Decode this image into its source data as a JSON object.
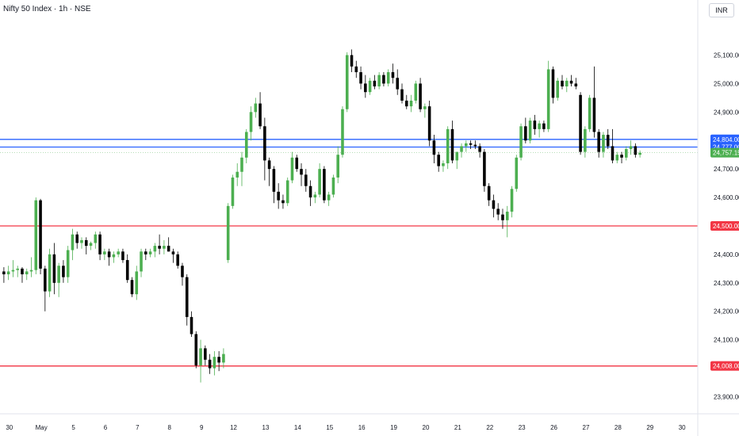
{
  "header": {
    "title": "Nifty 50 Index · 1h · NSE",
    "currency": "INR"
  },
  "chart_data": {
    "type": "candlestick",
    "ylim": [
      23840,
      25210
    ],
    "y_ticks": [
      {
        "value": 25100,
        "label": "25,100.00"
      },
      {
        "value": 25000,
        "label": "25,000.00"
      },
      {
        "value": 24900,
        "label": "24,900.00"
      },
      {
        "value": 24700,
        "label": "24,700.00"
      },
      {
        "value": 24600,
        "label": "24,600.00"
      },
      {
        "value": 24400,
        "label": "24,400.00"
      },
      {
        "value": 24300,
        "label": "24,300.00"
      },
      {
        "value": 24200,
        "label": "24,200.00"
      },
      {
        "value": 24100,
        "label": "24,100.00"
      },
      {
        "value": 23900,
        "label": "23,900.00"
      }
    ],
    "x_ticks": [
      "30",
      "May",
      "5",
      "6",
      "7",
      "8",
      "9",
      "12",
      "13",
      "14",
      "15",
      "16",
      "19",
      "20",
      "21",
      "22",
      "23",
      "26",
      "27",
      "28",
      "29",
      "30"
    ],
    "sessions_per_day": 7,
    "level_lines": [
      {
        "value": 24804,
        "label": "24,804.00",
        "color": "#2962ff"
      },
      {
        "value": 24777,
        "label": "24,777.00",
        "color": "#2962ff"
      },
      {
        "value": 24500,
        "label": "24,500.00",
        "color": "#f23645"
      },
      {
        "value": 24008,
        "label": "24,008.00",
        "color": "#f23645"
      }
    ],
    "last_price": {
      "value": 24757.15,
      "label": "24,757.15",
      "color": "#4caf50"
    },
    "colors": {
      "up": "#4caf50",
      "down": "#000000",
      "wick_up": "#4caf50",
      "wick_down": "#000000"
    },
    "candles": [
      [
        24340,
        24355,
        24300,
        24330
      ],
      [
        24330,
        24360,
        24310,
        24340
      ],
      [
        24340,
        24380,
        24320,
        24345
      ],
      [
        24345,
        24360,
        24320,
        24350
      ],
      [
        24350,
        24355,
        24300,
        24330
      ],
      [
        24330,
        24350,
        24310,
        24340
      ],
      [
        24340,
        24390,
        24320,
        24345
      ],
      [
        24345,
        24600,
        24330,
        24590
      ],
      [
        24590,
        24595,
        24330,
        24350
      ],
      [
        24350,
        24360,
        24200,
        24270
      ],
      [
        24270,
        24420,
        24250,
        24400
      ],
      [
        24400,
        24440,
        24260,
        24300
      ],
      [
        24300,
        24370,
        24250,
        24360
      ],
      [
        24360,
        24380,
        24300,
        24320
      ],
      [
        24320,
        24430,
        24300,
        24415
      ],
      [
        24415,
        24490,
        24380,
        24470
      ],
      [
        24470,
        24480,
        24420,
        24440
      ],
      [
        24440,
        24460,
        24420,
        24450
      ],
      [
        24450,
        24460,
        24400,
        24430
      ],
      [
        24430,
        24445,
        24415,
        24440
      ],
      [
        24440,
        24480,
        24420,
        24470
      ],
      [
        24470,
        24480,
        24380,
        24400
      ],
      [
        24400,
        24420,
        24380,
        24410
      ],
      [
        24410,
        24420,
        24360,
        24390
      ],
      [
        24390,
        24410,
        24370,
        24400
      ],
      [
        24400,
        24420,
        24390,
        24410
      ],
      [
        24410,
        24420,
        24370,
        24380
      ],
      [
        24380,
        24400,
        24300,
        24310
      ],
      [
        24310,
        24320,
        24250,
        24260
      ],
      [
        24260,
        24360,
        24240,
        24340
      ],
      [
        24340,
        24420,
        24320,
        24410
      ],
      [
        24410,
        24420,
        24380,
        24400
      ],
      [
        24400,
        24420,
        24390,
        24410
      ],
      [
        24410,
        24440,
        24390,
        24430
      ],
      [
        24430,
        24470,
        24400,
        24420
      ],
      [
        24420,
        24450,
        24400,
        24430
      ],
      [
        24430,
        24460,
        24410,
        24410
      ],
      [
        24410,
        24420,
        24370,
        24400
      ],
      [
        24400,
        24410,
        24350,
        24360
      ],
      [
        24360,
        24370,
        24290,
        24320
      ],
      [
        24320,
        24330,
        24150,
        24180
      ],
      [
        24180,
        24200,
        24110,
        24120
      ],
      [
        24120,
        24130,
        24000,
        24010
      ],
      [
        24010,
        24100,
        23950,
        24070
      ],
      [
        24070,
        24080,
        24010,
        24030
      ],
      [
        24030,
        24050,
        23980,
        24000
      ],
      [
        24000,
        24060,
        23975,
        24040
      ],
      [
        24040,
        24060,
        23990,
        24020
      ],
      [
        24020,
        24070,
        24000,
        24050
      ],
      [
        24380,
        24580,
        24370,
        24570
      ],
      [
        24570,
        24680,
        24560,
        24670
      ],
      [
        24670,
        24720,
        24640,
        24690
      ],
      [
        24690,
        24760,
        24640,
        24740
      ],
      [
        24740,
        24840,
        24720,
        24830
      ],
      [
        24830,
        24920,
        24800,
        24900
      ],
      [
        24900,
        24950,
        24880,
        24930
      ],
      [
        24930,
        24970,
        24840,
        24850
      ],
      [
        24850,
        24880,
        24660,
        24730
      ],
      [
        24730,
        24740,
        24640,
        24700
      ],
      [
        24700,
        24710,
        24580,
        24620
      ],
      [
        24620,
        24650,
        24560,
        24590
      ],
      [
        24590,
        24610,
        24560,
        24580
      ],
      [
        24580,
        24670,
        24570,
        24660
      ],
      [
        24660,
        24760,
        24650,
        24740
      ],
      [
        24740,
        24750,
        24690,
        24700
      ],
      [
        24700,
        24720,
        24640,
        24680
      ],
      [
        24680,
        24700,
        24620,
        24640
      ],
      [
        24640,
        24660,
        24570,
        24600
      ],
      [
        24600,
        24620,
        24580,
        24610
      ],
      [
        24610,
        24720,
        24600,
        24700
      ],
      [
        24700,
        24710,
        24580,
        24590
      ],
      [
        24590,
        24620,
        24570,
        24610
      ],
      [
        24610,
        24680,
        24600,
        24670
      ],
      [
        24670,
        24780,
        24650,
        24750
      ],
      [
        24750,
        24920,
        24740,
        24910
      ],
      [
        24910,
        25110,
        24900,
        25100
      ],
      [
        25100,
        25120,
        25040,
        25060
      ],
      [
        25060,
        25080,
        25020,
        25040
      ],
      [
        25040,
        25060,
        24980,
        25000
      ],
      [
        25000,
        25030,
        24950,
        24970
      ],
      [
        24970,
        25020,
        24960,
        25010
      ],
      [
        25010,
        25030,
        24980,
        24990
      ],
      [
        24990,
        25040,
        24980,
        25030
      ],
      [
        25030,
        25040,
        24990,
        25000
      ],
      [
        25000,
        25050,
        24990,
        25040
      ],
      [
        25040,
        25070,
        25000,
        25020
      ],
      [
        25020,
        25050,
        24960,
        24980
      ],
      [
        24980,
        25000,
        24930,
        24940
      ],
      [
        24940,
        24960,
        24910,
        24920
      ],
      [
        24920,
        24960,
        24900,
        24940
      ],
      [
        24940,
        25010,
        24930,
        25000
      ],
      [
        25000,
        25020,
        24900,
        24910
      ],
      [
        24910,
        24930,
        24880,
        24920
      ],
      [
        24920,
        24940,
        24780,
        24800
      ],
      [
        24800,
        24820,
        24720,
        24750
      ],
      [
        24750,
        24760,
        24690,
        24710
      ],
      [
        24710,
        24730,
        24690,
        24720
      ],
      [
        24720,
        24850,
        24700,
        24840
      ],
      [
        24840,
        24870,
        24720,
        24730
      ],
      [
        24730,
        24760,
        24700,
        24760
      ],
      [
        24760,
        24790,
        24740,
        24780
      ],
      [
        24780,
        24800,
        24760,
        24790
      ],
      [
        24790,
        24800,
        24770,
        24785
      ],
      [
        24785,
        24800,
        24770,
        24780
      ],
      [
        24780,
        24790,
        24740,
        24760
      ],
      [
        24760,
        24770,
        24620,
        24640
      ],
      [
        24640,
        24650,
        24570,
        24590
      ],
      [
        24590,
        24610,
        24530,
        24560
      ],
      [
        24560,
        24580,
        24520,
        24540
      ],
      [
        24540,
        24560,
        24490,
        24520
      ],
      [
        24520,
        24570,
        24460,
        24550
      ],
      [
        24550,
        24640,
        24530,
        24630
      ],
      [
        24630,
        24750,
        24620,
        24740
      ],
      [
        24740,
        24860,
        24730,
        24850
      ],
      [
        24850,
        24880,
        24790,
        24800
      ],
      [
        24800,
        24880,
        24790,
        24870
      ],
      [
        24870,
        24890,
        24820,
        24840
      ],
      [
        24840,
        24870,
        24810,
        24860
      ],
      [
        24860,
        24870,
        24830,
        24840
      ],
      [
        24840,
        25080,
        24830,
        25050
      ],
      [
        25050,
        25060,
        24930,
        24950
      ],
      [
        24950,
        25020,
        24940,
        25010
      ],
      [
        25010,
        25030,
        24980,
        24990
      ],
      [
        24990,
        25020,
        24970,
        25010
      ],
      [
        25010,
        25030,
        24990,
        25000
      ],
      [
        25000,
        25020,
        24980,
        24990
      ],
      [
        24960,
        24970,
        24750,
        24760
      ],
      [
        24760,
        24850,
        24740,
        24840
      ],
      [
        24840,
        24960,
        24830,
        24950
      ],
      [
        24950,
        25060,
        24810,
        24830
      ],
      [
        24830,
        24840,
        24740,
        24760
      ],
      [
        24760,
        24830,
        24740,
        24820
      ],
      [
        24820,
        24840,
        24770,
        24780
      ],
      [
        24780,
        24840,
        24720,
        24730
      ],
      [
        24730,
        24760,
        24720,
        24750
      ],
      [
        24750,
        24760,
        24720,
        24740
      ],
      [
        24740,
        24780,
        24730,
        24770
      ],
      [
        24770,
        24800,
        24750,
        24780
      ],
      [
        24780,
        24790,
        24740,
        24750
      ],
      [
        24750,
        24765,
        24740,
        24757
      ]
    ]
  }
}
